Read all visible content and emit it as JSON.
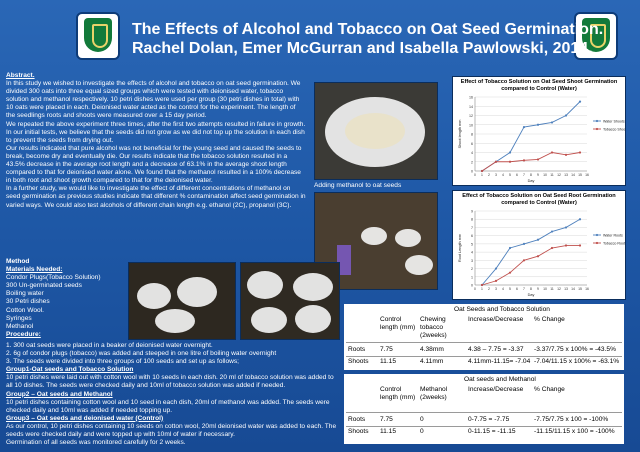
{
  "header": {
    "title_line1": "The Effects of Alcohol and Tobacco on Oat Seed Germination.",
    "title_line2": "Rachel Dolan, Emer McGurran and Isabella Pawlowski, 2014."
  },
  "abstract": {
    "heading": "Abstract.",
    "p1": "In this study we wished to investigate the effects of alcohol and tobacco on oat seed germination. We divided 300 oats into three equal sized groups which were tested with deionised water, tobacco solution and methanol respectively. 10 petri dishes were used per group (30 petri dishes in total) with 10 oats were placed in each. Deionised water acted as the control for the experiment. The length of the seedlings roots and shoots were measured over a 15 day period.",
    "p2": "We repeated the above experiment three times, after the first two attempts resulted in failure in growth. In our initial tests, we believe that the seeds did not grow as we did not top up the solution in each dish to prevent the seeds from drying out.",
    "p3": "Our results indicated that pure alcohol was not beneficial for the young seed and caused the seeds to break, become dry and eventually die. Our results indicate that the tobacco solution resulted in a 43.5% decrease in the average root length and a decrease of 63.1% in the average shoot length compared to that for deionised water alone.  We found that the methanol resulted in a 100% decrease in both root and shoot growth compared to that for the deionised water.",
    "p4": "In a further study, we would like to investigate the effect of different concentrations of methanol on seed germination as previous studies indicate that different % contamination affect seed germination in varied ways.  We could also test alcohols of different chain length e.g. ethanol (2C), propanol (3C)."
  },
  "photo_caption": "Adding methanol to oat seeds",
  "method": {
    "heading": "Method",
    "materials_heading": "Materials Needed:",
    "materials": [
      "Condor Plugs(Tobacco Solution)",
      "300 Un-germinated seeds",
      "Boiling water",
      "30 Petri dishes",
      "Cotton Wool.",
      "Syringes",
      "Methanol"
    ],
    "procedure_heading": "Procedure:",
    "steps": [
      "1. 300 oat seeds were placed in a beaker of deionised water overnight.",
      "2. 6g of condor plugs (tobacco) was added and steeped in one litre of boiling water overnight",
      "3. The seeds were divided into three groups of 100 seeds and set up as follows;"
    ],
    "group1_heading": "Group1-Oat seeds and Tobacco Solution",
    "group1_text": "10 petri dishes were laid out with cotton wool with 10 seeds in each dish. 20 ml of tobacco solution was added to all 10 dishes. The seeds were checked daily and 10ml of tobacco solution was added if needed.",
    "group2_heading": "Group2 – Oat seeds and Methanol",
    "group2_text": "10 petri dishes containing cotton wool and 10 seed in each dish, 20ml of methanol was added. The seeds were checked daily and 10ml was added if needed topping up.",
    "group3_heading": "Group3 – Oat seeds and deionised water (Control)",
    "group3_text": "As our control, 10 petri dishes containing 10 seeds on cotton wool, 20ml deionised water was added to each. The seeds were checked daily and were topped up with 10ml of water if necessary.",
    "closing": "Germination of all seeds was monitored carefully for 2 weeks."
  },
  "chart_data": [
    {
      "type": "line",
      "title": "Effect of Tobacco Solution on Oat Seed Shoot Germination compared to Control (Water)",
      "xlabel": "Day",
      "ylabel": "Shoot length mm",
      "x": [
        1,
        3,
        5,
        7,
        9,
        11,
        13,
        15
      ],
      "xlim": [
        0,
        16
      ],
      "ylim": [
        0,
        16
      ],
      "xticks": [
        "0",
        "1",
        "2",
        "3",
        "4",
        "5",
        "6",
        "7",
        "8",
        "9",
        "10",
        "11",
        "12",
        "13",
        "14",
        "15",
        "16"
      ],
      "yticks": [
        "0",
        "2",
        "4",
        "6",
        "8",
        "10",
        "12",
        "14",
        "16"
      ],
      "legend_position": "right",
      "series": [
        {
          "name": "Water Shoots",
          "color": "#4f81bd",
          "values": [
            0,
            2,
            4,
            9.5,
            10,
            10.5,
            12,
            15
          ]
        },
        {
          "name": "Tobacco Shoots",
          "color": "#c0504d",
          "values": [
            0,
            2,
            2,
            2.3,
            2.5,
            4,
            3.5,
            4
          ]
        }
      ]
    },
    {
      "type": "line",
      "title": "Effect of Tobacco Solution on Oat Seed Root Germination compared to Control (Water)",
      "xlabel": "Day",
      "ylabel": "Root Length mm",
      "x": [
        1,
        3,
        5,
        7,
        9,
        11,
        13,
        15
      ],
      "xlim": [
        0,
        16
      ],
      "ylim": [
        0,
        9
      ],
      "xticks": [
        "0",
        "1",
        "2",
        "3",
        "4",
        "5",
        "6",
        "7",
        "8",
        "9",
        "10",
        "11",
        "12",
        "13",
        "14",
        "15",
        "16"
      ],
      "yticks": [
        "0",
        "1",
        "2",
        "3",
        "4",
        "5",
        "6",
        "7",
        "8",
        "9"
      ],
      "legend_position": "right",
      "series": [
        {
          "name": "Water Roots",
          "color": "#4f81bd",
          "values": [
            0,
            2,
            4.5,
            5,
            5.5,
            6.5,
            7,
            8
          ]
        },
        {
          "name": "Tobacco Roots",
          "color": "#c0504d",
          "values": [
            0,
            0.5,
            1.5,
            3,
            3.5,
            4.5,
            4.8,
            4.8
          ]
        }
      ]
    }
  ],
  "table1": {
    "caption": "Oat Seeds and Tobacco Solution",
    "headers": [
      "",
      "Control length (mm)",
      "Chewing tobacco (2weeks)",
      "Increase/Decrease",
      "% Change"
    ],
    "rows": [
      [
        "Roots",
        "7.75",
        "4.38mm",
        "4.38 – 7.75 = -3.37",
        "-3.37/7.75 x 100% = -43.5%"
      ],
      [
        "Shoots",
        "11.15",
        "4.11mm",
        "4.11mm-11.15= -7.04",
        "-7.04/11.15 x 100% = -63.1%"
      ]
    ]
  },
  "table2": {
    "caption": "Oat seeds and  Methanol",
    "headers": [
      "",
      "Control length (mm)",
      "Methanol (2weeks)",
      "Increase/Decrease",
      "% Change"
    ],
    "rows": [
      [
        "Roots",
        "7.75",
        "0",
        "0-7.75 = -7.75",
        "-7.75/7.75 x 100 = -100%"
      ],
      [
        "Shoots",
        "11.15",
        "0",
        "0-11.15 = -11.15",
        "-11.15/11.15 x 100 = -100%"
      ]
    ]
  }
}
